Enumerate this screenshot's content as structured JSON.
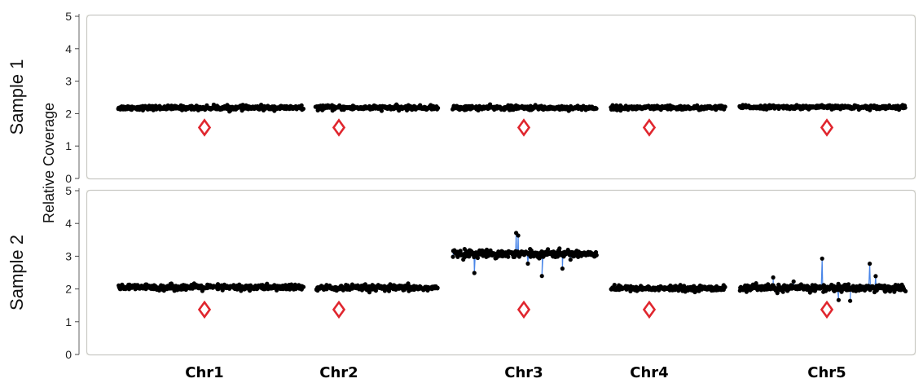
{
  "chart_data": {
    "type": "scatter",
    "ylabel": "Relative Coverage",
    "ylim": [
      0,
      5
    ],
    "yticks": [
      0,
      1,
      2,
      3,
      4,
      5
    ],
    "categories": [
      "Chr1",
      "Chr2",
      "Chr3",
      "Chr4",
      "Chr5"
    ],
    "panels": [
      {
        "name": "Sample 1",
        "series": [
          {
            "category": "Chr1",
            "center": 2.18,
            "spread": 0.06,
            "marker": 1.57
          },
          {
            "category": "Chr2",
            "center": 2.18,
            "spread": 0.06,
            "marker": 1.57
          },
          {
            "category": "Chr3",
            "center": 2.18,
            "spread": 0.06,
            "marker": 1.57
          },
          {
            "category": "Chr4",
            "center": 2.18,
            "spread": 0.06,
            "marker": 1.57
          },
          {
            "category": "Chr5",
            "center": 2.2,
            "spread": 0.05,
            "marker": 1.57
          }
        ]
      },
      {
        "name": "Sample 2",
        "series": [
          {
            "category": "Chr1",
            "center": 2.05,
            "spread": 0.08,
            "marker": 1.37
          },
          {
            "category": "Chr2",
            "center": 2.03,
            "spread": 0.08,
            "marker": 1.37
          },
          {
            "category": "Chr3",
            "center": 3.08,
            "spread": 0.1,
            "marker": 1.37
          },
          {
            "category": "Chr4",
            "center": 2.02,
            "spread": 0.07,
            "marker": 1.37
          },
          {
            "category": "Chr5",
            "center": 2.03,
            "spread": 0.1,
            "marker": 1.37
          }
        ]
      }
    ],
    "colors": {
      "points": "#000000",
      "line": "#4a86e8",
      "marker": "#e0262e",
      "panel_bg": "#f6f6f1",
      "panel_border": "#c9c9c4"
    }
  }
}
